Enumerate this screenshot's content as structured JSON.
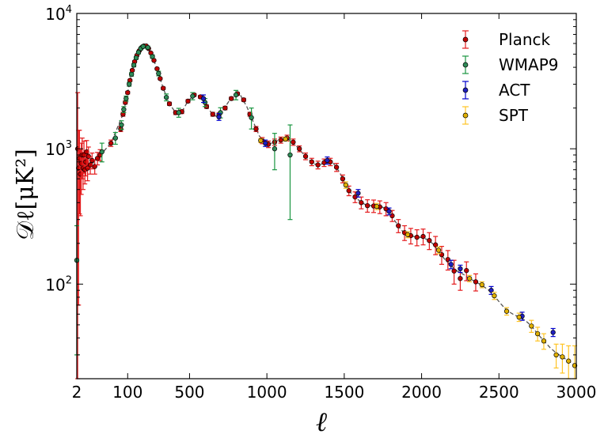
{
  "chart_data": {
    "type": "scatter",
    "title": "",
    "xlabel": "ℓ",
    "ylabel": "𝒟ℓ[μK²]",
    "x_scale": "hybrid",
    "y_scale": "log",
    "xlim": [
      2,
      3000
    ],
    "ylim": [
      20,
      10000
    ],
    "x_ticks": [
      {
        "value": 2,
        "label": "2"
      },
      {
        "value": 100,
        "label": "100"
      },
      {
        "value": 500,
        "label": "500"
      },
      {
        "value": 1000,
        "label": "1000"
      },
      {
        "value": 1500,
        "label": "1500"
      },
      {
        "value": 2000,
        "label": "2000"
      },
      {
        "value": 2500,
        "label": "2500"
      },
      {
        "value": 3000,
        "label": "3000"
      }
    ],
    "y_ticks": [
      {
        "value": 100,
        "base": "10",
        "exp": "2"
      },
      {
        "value": 1000,
        "base": "10",
        "exp": "3"
      },
      {
        "value": 10000,
        "base": "10",
        "exp": "4"
      }
    ],
    "grid": false,
    "legend_position": "top-right",
    "model_curve": [
      [
        2,
        1000
      ],
      [
        4,
        880
      ],
      [
        10,
        750
      ],
      [
        20,
        780
      ],
      [
        40,
        1100
      ],
      [
        70,
        1800
      ],
      [
        100,
        2600
      ],
      [
        130,
        3800
      ],
      [
        160,
        4900
      ],
      [
        190,
        5600
      ],
      [
        220,
        5750
      ],
      [
        250,
        5100
      ],
      [
        290,
        3900
      ],
      [
        330,
        2800
      ],
      [
        370,
        2150
      ],
      [
        410,
        1850
      ],
      [
        450,
        1880
      ],
      [
        490,
        2250
      ],
      [
        530,
        2500
      ],
      [
        570,
        2420
      ],
      [
        610,
        2050
      ],
      [
        650,
        1800
      ],
      [
        680,
        1720
      ],
      [
        720,
        1950
      ],
      [
        760,
        2300
      ],
      [
        800,
        2550
      ],
      [
        830,
        2480
      ],
      [
        870,
        2050
      ],
      [
        910,
        1600
      ],
      [
        950,
        1250
      ],
      [
        990,
        1100
      ],
      [
        1030,
        1100
      ],
      [
        1070,
        1150
      ],
      [
        1110,
        1180
      ],
      [
        1150,
        1160
      ],
      [
        1190,
        1050
      ],
      [
        1230,
        930
      ],
      [
        1270,
        830
      ],
      [
        1310,
        770
      ],
      [
        1350,
        770
      ],
      [
        1390,
        790
      ],
      [
        1430,
        780
      ],
      [
        1470,
        670
      ],
      [
        1510,
        540
      ],
      [
        1550,
        460
      ],
      [
        1590,
        420
      ],
      [
        1630,
        390
      ],
      [
        1670,
        380
      ],
      [
        1710,
        375
      ],
      [
        1750,
        370
      ],
      [
        1790,
        340
      ],
      [
        1830,
        290
      ],
      [
        1870,
        250
      ],
      [
        1910,
        230
      ],
      [
        1950,
        225
      ],
      [
        1990,
        222
      ],
      [
        2030,
        215
      ],
      [
        2070,
        200
      ],
      [
        2110,
        175
      ],
      [
        2150,
        152
      ],
      [
        2190,
        137
      ],
      [
        2230,
        125
      ],
      [
        2270,
        118
      ],
      [
        2310,
        110
      ],
      [
        2350,
        104
      ],
      [
        2390,
        98
      ],
      [
        2430,
        91
      ],
      [
        2470,
        82
      ],
      [
        2510,
        72
      ],
      [
        2550,
        64
      ],
      [
        2590,
        60
      ],
      [
        2630,
        57
      ],
      [
        2670,
        54
      ],
      [
        2710,
        49
      ],
      [
        2750,
        43
      ],
      [
        2790,
        38
      ],
      [
        2830,
        34
      ],
      [
        2870,
        31
      ],
      [
        2910,
        29
      ],
      [
        2950,
        27
      ],
      [
        3000,
        25
      ]
    ],
    "series": [
      {
        "name": "Planck",
        "color": "#e41a1c",
        "marker_fill": "#c00000",
        "points": [
          {
            "x": 3,
            "y": 1000,
            "err": 1600
          },
          {
            "x": 4,
            "y": 720,
            "err": 650
          },
          {
            "x": 5,
            "y": 850,
            "err": 520
          },
          {
            "x": 6,
            "y": 650,
            "err": 330
          },
          {
            "x": 7,
            "y": 780,
            "err": 320
          },
          {
            "x": 8,
            "y": 900,
            "err": 300
          },
          {
            "x": 9,
            "y": 720,
            "err": 220
          },
          {
            "x": 10,
            "y": 900,
            "err": 240
          },
          {
            "x": 11,
            "y": 700,
            "err": 150
          },
          {
            "x": 12,
            "y": 800,
            "err": 170
          },
          {
            "x": 13,
            "y": 950,
            "err": 200
          },
          {
            "x": 14,
            "y": 720,
            "err": 140
          },
          {
            "x": 15,
            "y": 880,
            "err": 150
          },
          {
            "x": 17,
            "y": 760,
            "err": 110
          },
          {
            "x": 19,
            "y": 820,
            "err": 110
          },
          {
            "x": 22,
            "y": 740,
            "err": 90
          },
          {
            "x": 25,
            "y": 850,
            "err": 90
          },
          {
            "x": 28,
            "y": 900,
            "err": 85
          },
          {
            "x": 40,
            "y": 1100,
            "err": 60
          },
          {
            "x": 55,
            "y": 1400,
            "err": 60
          },
          {
            "x": 70,
            "y": 1800,
            "err": 60
          },
          {
            "x": 85,
            "y": 2200,
            "err": 60
          },
          {
            "x": 100,
            "y": 2600,
            "err": 60
          },
          {
            "x": 115,
            "y": 3200,
            "err": 60
          },
          {
            "x": 130,
            "y": 3800,
            "err": 60
          },
          {
            "x": 145,
            "y": 4400,
            "err": 60
          },
          {
            "x": 160,
            "y": 4900,
            "err": 60
          },
          {
            "x": 175,
            "y": 5300,
            "err": 60
          },
          {
            "x": 190,
            "y": 5600,
            "err": 60
          },
          {
            "x": 205,
            "y": 5750,
            "err": 60
          },
          {
            "x": 220,
            "y": 5750,
            "err": 60
          },
          {
            "x": 235,
            "y": 5500,
            "err": 60
          },
          {
            "x": 250,
            "y": 5100,
            "err": 60
          },
          {
            "x": 270,
            "y": 4500,
            "err": 60
          },
          {
            "x": 290,
            "y": 3900,
            "err": 60
          },
          {
            "x": 310,
            "y": 3300,
            "err": 60
          },
          {
            "x": 330,
            "y": 2800,
            "err": 60
          },
          {
            "x": 370,
            "y": 2150,
            "err": 60
          },
          {
            "x": 410,
            "y": 1850,
            "err": 60
          },
          {
            "x": 450,
            "y": 1880,
            "err": 60
          },
          {
            "x": 490,
            "y": 2250,
            "err": 60
          },
          {
            "x": 530,
            "y": 2500,
            "err": 60
          },
          {
            "x": 570,
            "y": 2420,
            "err": 60
          },
          {
            "x": 610,
            "y": 2050,
            "err": 60
          },
          {
            "x": 650,
            "y": 1800,
            "err": 60
          },
          {
            "x": 690,
            "y": 1780,
            "err": 60
          },
          {
            "x": 730,
            "y": 2000,
            "err": 60
          },
          {
            "x": 770,
            "y": 2350,
            "err": 60
          },
          {
            "x": 810,
            "y": 2550,
            "err": 60
          },
          {
            "x": 850,
            "y": 2300,
            "err": 60
          },
          {
            "x": 890,
            "y": 1800,
            "err": 60
          },
          {
            "x": 930,
            "y": 1400,
            "err": 60
          },
          {
            "x": 970,
            "y": 1150,
            "err": 60
          },
          {
            "x": 1010,
            "y": 1080,
            "err": 60
          },
          {
            "x": 1050,
            "y": 1120,
            "err": 60
          },
          {
            "x": 1090,
            "y": 1160,
            "err": 60
          },
          {
            "x": 1130,
            "y": 1200,
            "err": 60
          },
          {
            "x": 1170,
            "y": 1120,
            "err": 60
          },
          {
            "x": 1210,
            "y": 1000,
            "err": 50
          },
          {
            "x": 1250,
            "y": 880,
            "err": 50
          },
          {
            "x": 1290,
            "y": 800,
            "err": 50
          },
          {
            "x": 1330,
            "y": 760,
            "err": 50
          },
          {
            "x": 1370,
            "y": 790,
            "err": 50
          },
          {
            "x": 1410,
            "y": 800,
            "err": 50
          },
          {
            "x": 1450,
            "y": 730,
            "err": 50
          },
          {
            "x": 1490,
            "y": 600,
            "err": 40
          },
          {
            "x": 1530,
            "y": 490,
            "err": 40
          },
          {
            "x": 1570,
            "y": 440,
            "err": 40
          },
          {
            "x": 1610,
            "y": 400,
            "err": 40
          },
          {
            "x": 1650,
            "y": 380,
            "err": 40
          },
          {
            "x": 1690,
            "y": 378,
            "err": 40
          },
          {
            "x": 1730,
            "y": 372,
            "err": 40
          },
          {
            "x": 1770,
            "y": 360,
            "err": 40
          },
          {
            "x": 1810,
            "y": 320,
            "err": 30
          },
          {
            "x": 1850,
            "y": 270,
            "err": 30
          },
          {
            "x": 1890,
            "y": 240,
            "err": 30
          },
          {
            "x": 1930,
            "y": 228,
            "err": 30
          },
          {
            "x": 1970,
            "y": 222,
            "err": 30
          },
          {
            "x": 2010,
            "y": 225,
            "err": 30
          },
          {
            "x": 2050,
            "y": 210,
            "err": 30
          },
          {
            "x": 2090,
            "y": 195,
            "err": 30
          },
          {
            "x": 2130,
            "y": 165,
            "err": 25
          },
          {
            "x": 2170,
            "y": 152,
            "err": 25
          },
          {
            "x": 2210,
            "y": 125,
            "err": 25
          },
          {
            "x": 2250,
            "y": 110,
            "err": 20
          },
          {
            "x": 2290,
            "y": 126,
            "err": 20
          },
          {
            "x": 2350,
            "y": 104,
            "err": 15
          }
        ]
      },
      {
        "name": "WMAP9",
        "color": "#1a9641",
        "marker_fill": "#2e8b57",
        "points": [
          {
            "x": 2,
            "y": 150,
            "err": 120
          },
          {
            "x": 30,
            "y": 950,
            "err": 150
          },
          {
            "x": 45,
            "y": 1200,
            "err": 120
          },
          {
            "x": 60,
            "y": 1500,
            "err": 110
          },
          {
            "x": 75,
            "y": 1950,
            "err": 100
          },
          {
            "x": 90,
            "y": 2350,
            "err": 100
          },
          {
            "x": 110,
            "y": 3000,
            "err": 100
          },
          {
            "x": 125,
            "y": 3550,
            "err": 110
          },
          {
            "x": 140,
            "y": 4150,
            "err": 120
          },
          {
            "x": 155,
            "y": 4700,
            "err": 120
          },
          {
            "x": 170,
            "y": 5150,
            "err": 130
          },
          {
            "x": 185,
            "y": 5500,
            "err": 130
          },
          {
            "x": 200,
            "y": 5700,
            "err": 140
          },
          {
            "x": 230,
            "y": 5600,
            "err": 140
          },
          {
            "x": 260,
            "y": 4800,
            "err": 140
          },
          {
            "x": 300,
            "y": 3600,
            "err": 140
          },
          {
            "x": 350,
            "y": 2400,
            "err": 140
          },
          {
            "x": 430,
            "y": 1850,
            "err": 140
          },
          {
            "x": 520,
            "y": 2450,
            "err": 150
          },
          {
            "x": 600,
            "y": 2200,
            "err": 150
          },
          {
            "x": 700,
            "y": 1850,
            "err": 160
          },
          {
            "x": 800,
            "y": 2500,
            "err": 200
          },
          {
            "x": 900,
            "y": 1700,
            "err": 300
          },
          {
            "x": 1050,
            "y": 1000,
            "err": 300
          },
          {
            "x": 1150,
            "y": 900,
            "err": 600
          }
        ]
      },
      {
        "name": "ACT",
        "color": "#0000cc",
        "marker_fill": "#1f1fbf",
        "points": [
          {
            "x": 590,
            "y": 2350,
            "err": 150
          },
          {
            "x": 690,
            "y": 1720,
            "err": 100
          },
          {
            "x": 990,
            "y": 1100,
            "err": 60
          },
          {
            "x": 1390,
            "y": 820,
            "err": 50
          },
          {
            "x": 1590,
            "y": 470,
            "err": 30
          },
          {
            "x": 1790,
            "y": 345,
            "err": 20
          },
          {
            "x": 2190,
            "y": 140,
            "err": 10
          },
          {
            "x": 2250,
            "y": 130,
            "err": 8
          },
          {
            "x": 2450,
            "y": 90,
            "err": 6
          },
          {
            "x": 2650,
            "y": 58,
            "err": 4
          },
          {
            "x": 2850,
            "y": 44,
            "err": 3
          }
        ]
      },
      {
        "name": "SPT",
        "color": "#ffc425",
        "marker_fill": "#e0b000",
        "points": [
          {
            "x": 960,
            "y": 1150,
            "err": 40
          },
          {
            "x": 1120,
            "y": 1180,
            "err": 40
          },
          {
            "x": 1510,
            "y": 540,
            "err": 30
          },
          {
            "x": 1710,
            "y": 375,
            "err": 20
          },
          {
            "x": 1910,
            "y": 232,
            "err": 12
          },
          {
            "x": 2110,
            "y": 178,
            "err": 10
          },
          {
            "x": 2310,
            "y": 110,
            "err": 6
          },
          {
            "x": 2390,
            "y": 99,
            "err": 5
          },
          {
            "x": 2470,
            "y": 82,
            "err": 5
          },
          {
            "x": 2550,
            "y": 63,
            "err": 4
          },
          {
            "x": 2630,
            "y": 57,
            "err": 4
          },
          {
            "x": 2710,
            "y": 49,
            "err": 5
          },
          {
            "x": 2750,
            "y": 43,
            "err": 5
          },
          {
            "x": 2790,
            "y": 38,
            "err": 5
          },
          {
            "x": 2870,
            "y": 30,
            "err": 6
          },
          {
            "x": 2910,
            "y": 29,
            "err": 7
          },
          {
            "x": 2950,
            "y": 27,
            "err": 8
          },
          {
            "x": 2990,
            "y": 25,
            "err": 10
          }
        ]
      }
    ]
  }
}
